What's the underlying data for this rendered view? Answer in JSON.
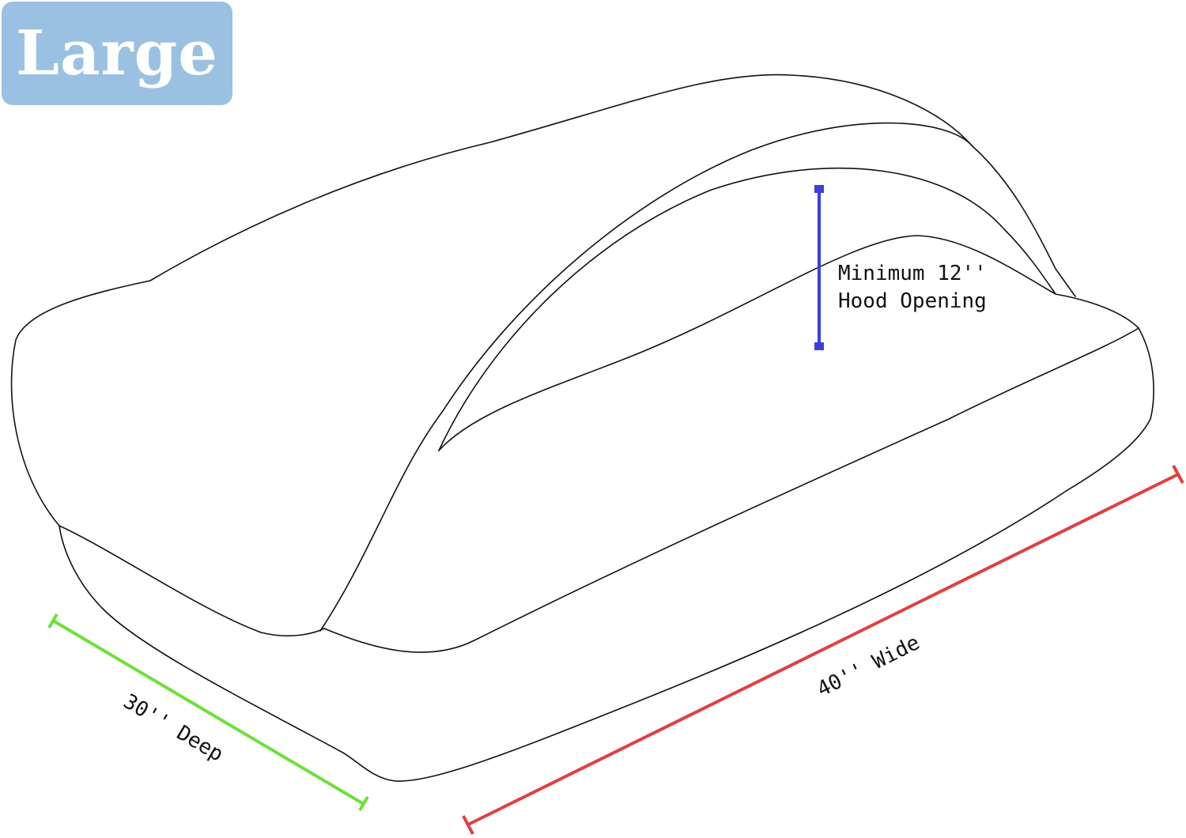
{
  "size_badge": {
    "label": "Large",
    "color": "#9bc1e2"
  },
  "dimensions": {
    "hood_opening": {
      "lines": [
        "Minimum 12''",
        "Hood Opening"
      ],
      "color": "#3b3fe0"
    },
    "width": {
      "label": "40'' Wide",
      "color": "#e04040"
    },
    "depth": {
      "label": "30'' Deep",
      "color": "#6ee03a"
    }
  }
}
